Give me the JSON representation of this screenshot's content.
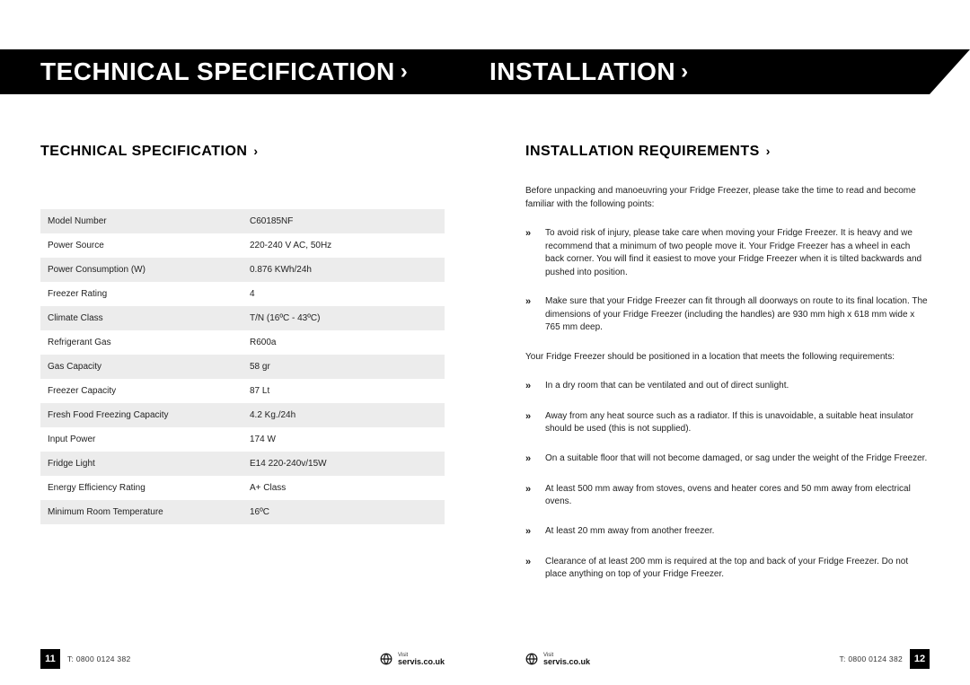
{
  "banners": {
    "left": "TECHNICAL SPECIFICATION",
    "right": "INSTALLATION"
  },
  "leftSection": {
    "title": "TECHNICAL SPECIFICATION",
    "specs": [
      {
        "label": "Model Number",
        "value": "C60185NF"
      },
      {
        "label": "Power Source",
        "value": "220-240 V AC, 50Hz"
      },
      {
        "label": "Power Consumption (W)",
        "value": "0.876 KWh/24h"
      },
      {
        "label": "Freezer Rating",
        "value": "4"
      },
      {
        "label": "Climate Class",
        "value": "T/N (16ºC - 43ºC)"
      },
      {
        "label": "Refrigerant Gas",
        "value": "R600a"
      },
      {
        "label": "Gas Capacity",
        "value": "58 gr"
      },
      {
        "label": "Freezer Capacity",
        "value": "87 Lt"
      },
      {
        "label": "Fresh Food Freezing Capacity",
        "value": "4.2 Kg./24h"
      },
      {
        "label": "Input Power",
        "value": "174 W"
      },
      {
        "label": "Fridge Light",
        "value": "E14 220-240v/15W"
      },
      {
        "label": "Energy Efficiency Rating",
        "value": "A+ Class"
      },
      {
        "label": "Minimum Room Temperature",
        "value": "16ºC"
      }
    ]
  },
  "rightSection": {
    "title": "INSTALLATION REQUIREMENTS",
    "intro": "Before unpacking and manoeuvring your Fridge Freezer, please take the time to read and become familiar with the following points:",
    "bulletsA": [
      "To avoid risk of injury, please take care when moving your Fridge Freezer. It is heavy and we recommend that a minimum of two people move it. Your Fridge Freezer has a wheel in each back corner. You will find it easiest to move your Fridge Freezer when it is tilted backwards and pushed into position.",
      "Make sure that your Fridge Freezer can fit through all doorways on route to its final location. The dimensions of your Fridge Freezer (including the handles) are 930 mm high x 618 mm wide x 765 mm deep."
    ],
    "subintro": "Your Fridge Freezer should be positioned in a location that meets the following requirements:",
    "bulletsB": [
      "In a dry room that can be ventilated and out of direct sunlight.",
      "Away from any heat source such as a radiator. If this is unavoidable, a suitable heat insulator should be used (this is not supplied).",
      "On a suitable floor that will not become damaged, or sag under the weight of the Fridge Freezer.",
      "At least 500 mm away from stoves, ovens and heater cores and 50 mm away from electrical ovens.",
      "At least 20 mm away from another freezer.",
      "Clearance of at least 200 mm is required at the top and back of your Fridge Freezer. Do not place anything on top of your Fridge Freezer."
    ]
  },
  "footer": {
    "leftPage": "11",
    "rightPage": "12",
    "phone": "T: 0800 0124 382",
    "visit": "Visit",
    "url": "servis.co.uk"
  }
}
